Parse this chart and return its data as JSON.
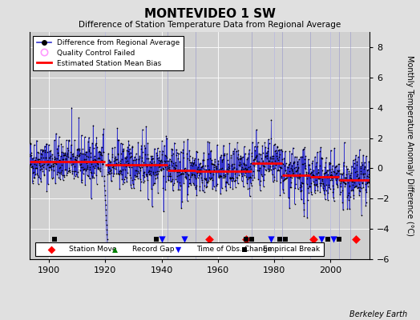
{
  "title": "MONTEVIDEO 1 SW",
  "subtitle": "Difference of Station Temperature Data from Regional Average",
  "ylabel": "Monthly Temperature Anomaly Difference (°C)",
  "xlim": [
    1893,
    2014
  ],
  "ylim": [
    -6,
    9
  ],
  "yticks": [
    -6,
    -4,
    -2,
    0,
    2,
    4,
    6,
    8
  ],
  "xticks": [
    1900,
    1920,
    1940,
    1960,
    1980,
    2000
  ],
  "bg_color": "#e0e0e0",
  "plot_bg_color": "#d0d0d0",
  "grid_color": "#ffffff",
  "line_color": "#3333cc",
  "dot_color": "#000000",
  "bias_color": "#ff0000",
  "qc_color": "#ff99ff",
  "vertical_lines": [
    1920,
    1942,
    1952,
    1972,
    1980,
    1983,
    1993,
    2000,
    2003,
    2007
  ],
  "station_moves": [
    1957,
    1970,
    1994,
    2009
  ],
  "record_gaps": [],
  "obs_changes": [
    1940,
    1948,
    1979,
    1997,
    2001
  ],
  "empirical_breaks": [
    1902,
    1938,
    1970,
    1972,
    1982,
    1984,
    1999,
    2003
  ],
  "marker_y": -4.7,
  "bias_segments": [
    {
      "x": [
        1893,
        1920
      ],
      "y": [
        0.45,
        0.45
      ]
    },
    {
      "x": [
        1920,
        1942
      ],
      "y": [
        0.25,
        0.25
      ]
    },
    {
      "x": [
        1942,
        1952
      ],
      "y": [
        -0.15,
        -0.15
      ]
    },
    {
      "x": [
        1952,
        1972
      ],
      "y": [
        -0.2,
        -0.2
      ]
    },
    {
      "x": [
        1972,
        1983
      ],
      "y": [
        0.35,
        0.35
      ]
    },
    {
      "x": [
        1983,
        1993
      ],
      "y": [
        -0.45,
        -0.45
      ]
    },
    {
      "x": [
        1993,
        2003
      ],
      "y": [
        -0.55,
        -0.55
      ]
    },
    {
      "x": [
        2003,
        2014
      ],
      "y": [
        -0.75,
        -0.75
      ]
    }
  ],
  "seed": 42,
  "berkeley_earth_text": "Berkeley Earth"
}
